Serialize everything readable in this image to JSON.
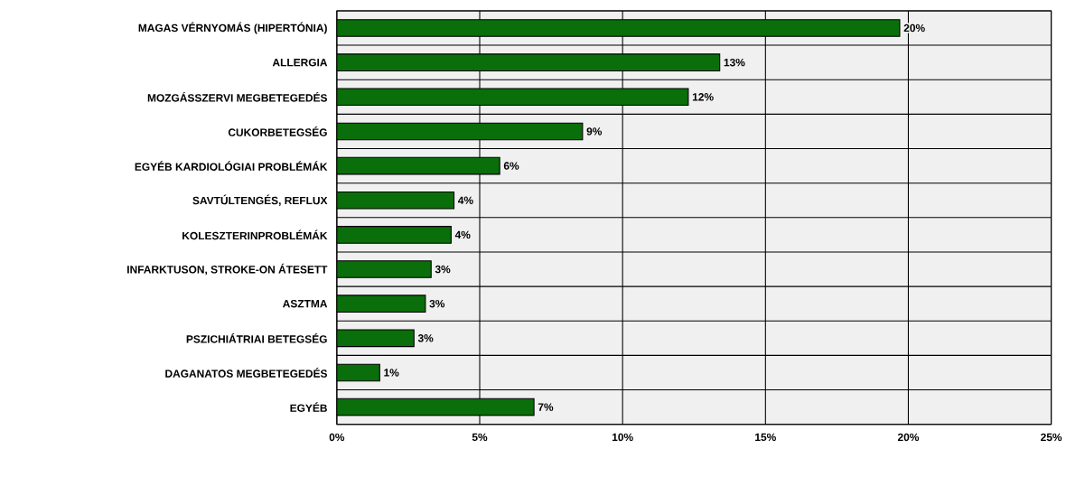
{
  "chart_data": {
    "type": "bar",
    "orientation": "horizontal",
    "categories": [
      "MAGAS VÉRNYOMÁS (HIPERTÓNIA)",
      "ALLERGIA",
      "MOZGÁSSZERVI MEGBETEGEDÉS",
      "CUKORBETEGSÉG",
      "EGYÉB KARDIOLÓGIAI PROBLÉMÁK",
      "SAVTÚLTENGÉS, REFLUX",
      "KOLESZTERINPROBLÉMÁK",
      "INFARKTUSON, STROKE-ON ÁTESETT",
      "ASZTMA",
      "PSZICHIÁTRIAI BETEGSÉG",
      "DAGANATOS MEGBETEGEDÉS",
      "EGYÉB"
    ],
    "values": [
      19.7,
      13.4,
      12.3,
      8.6,
      5.7,
      4.1,
      4.0,
      3.3,
      3.1,
      2.7,
      1.5,
      6.9
    ],
    "value_labels": [
      "20%",
      "13%",
      "12%",
      "9%",
      "6%",
      "4%",
      "4%",
      "3%",
      "3%",
      "3%",
      "1%",
      "7%"
    ],
    "color": "#0a6e0a",
    "xlim": [
      0,
      25
    ],
    "xticks": [
      {
        "value": 0,
        "label": "0%"
      },
      {
        "value": 5,
        "label": "5%"
      },
      {
        "value": 10,
        "label": "10%"
      },
      {
        "value": 15,
        "label": "15%"
      },
      {
        "value": 20,
        "label": "20%"
      },
      {
        "value": 25,
        "label": "25%"
      }
    ],
    "grid": true
  }
}
